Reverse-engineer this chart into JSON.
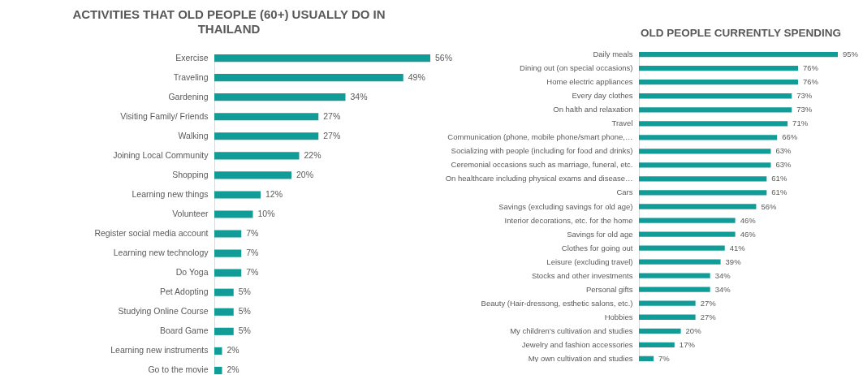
{
  "chart_data": [
    {
      "type": "bar",
      "orientation": "horizontal",
      "title": "ACTIVITIES THAT OLD PEOPLE (60+) USUALLY DO IN THAILAND",
      "color": "#129c98",
      "categories": [
        "Exercise",
        "Traveling",
        "Gardening",
        "Visiting Family/ Friends",
        "Walking",
        "Joining Local Community",
        "Shopping",
        "Learning new things",
        "Volunteer",
        "Register social media account",
        "Learning new technology",
        "Do Yoga",
        "Pet Adopting",
        "Studying Online Course",
        "Board Game",
        "Learning new instruments",
        "Go to the movie"
      ],
      "values": [
        56,
        49,
        34,
        27,
        27,
        22,
        20,
        12,
        10,
        7,
        7,
        7,
        5,
        5,
        5,
        2,
        2
      ],
      "value_labels": [
        "56%",
        "49%",
        "34%",
        "27%",
        "27%",
        "22%",
        "20%",
        "12%",
        "10%",
        "7%",
        "7%",
        "7%",
        "5%",
        "5%",
        "5%",
        "2%",
        "2%"
      ]
    },
    {
      "type": "bar",
      "orientation": "horizontal",
      "title": "OLD PEOPLE CURRENTLY SPENDING",
      "color": "#129c98",
      "categories": [
        "Daily meals",
        "Dining out (on special occasions)",
        "Home electric appliances",
        "Every day clothes",
        "On halth and relaxation",
        "Travel",
        "Communication (phone, mobile phone/smart phone,…",
        "Socializing with people (including for food and drinks)",
        "Ceremonial occasions such as marriage, funeral, etc.",
        "On healthcare including physical exams and disease…",
        "Cars",
        "Savings (excluding savings for old age)",
        "Interior decorations, etc. for the home",
        "Savings for old age",
        "Clothes for going out",
        "Leisure (excluding travel)",
        "Stocks and other investments",
        "Personal gifts",
        "Beauty (Hair-dressong, esthetic salons, etc.)",
        "Hobbies",
        "My children’s cultivation and studies",
        "Jewelry and fashion accessories",
        "My own cultivation and studies"
      ],
      "values": [
        95,
        76,
        76,
        73,
        73,
        71,
        66,
        63,
        63,
        61,
        61,
        56,
        46,
        46,
        41,
        39,
        34,
        34,
        27,
        27,
        20,
        17,
        7
      ],
      "value_labels": [
        "95%",
        "76%",
        "76%",
        "73%",
        "73%",
        "71%",
        "66%",
        "63%",
        "63%",
        "61%",
        "61%",
        "56%",
        "46%",
        "46%",
        "41%",
        "39%",
        "34%",
        "34%",
        "27%",
        "27%",
        "20%",
        "17%",
        "7%"
      ]
    }
  ]
}
